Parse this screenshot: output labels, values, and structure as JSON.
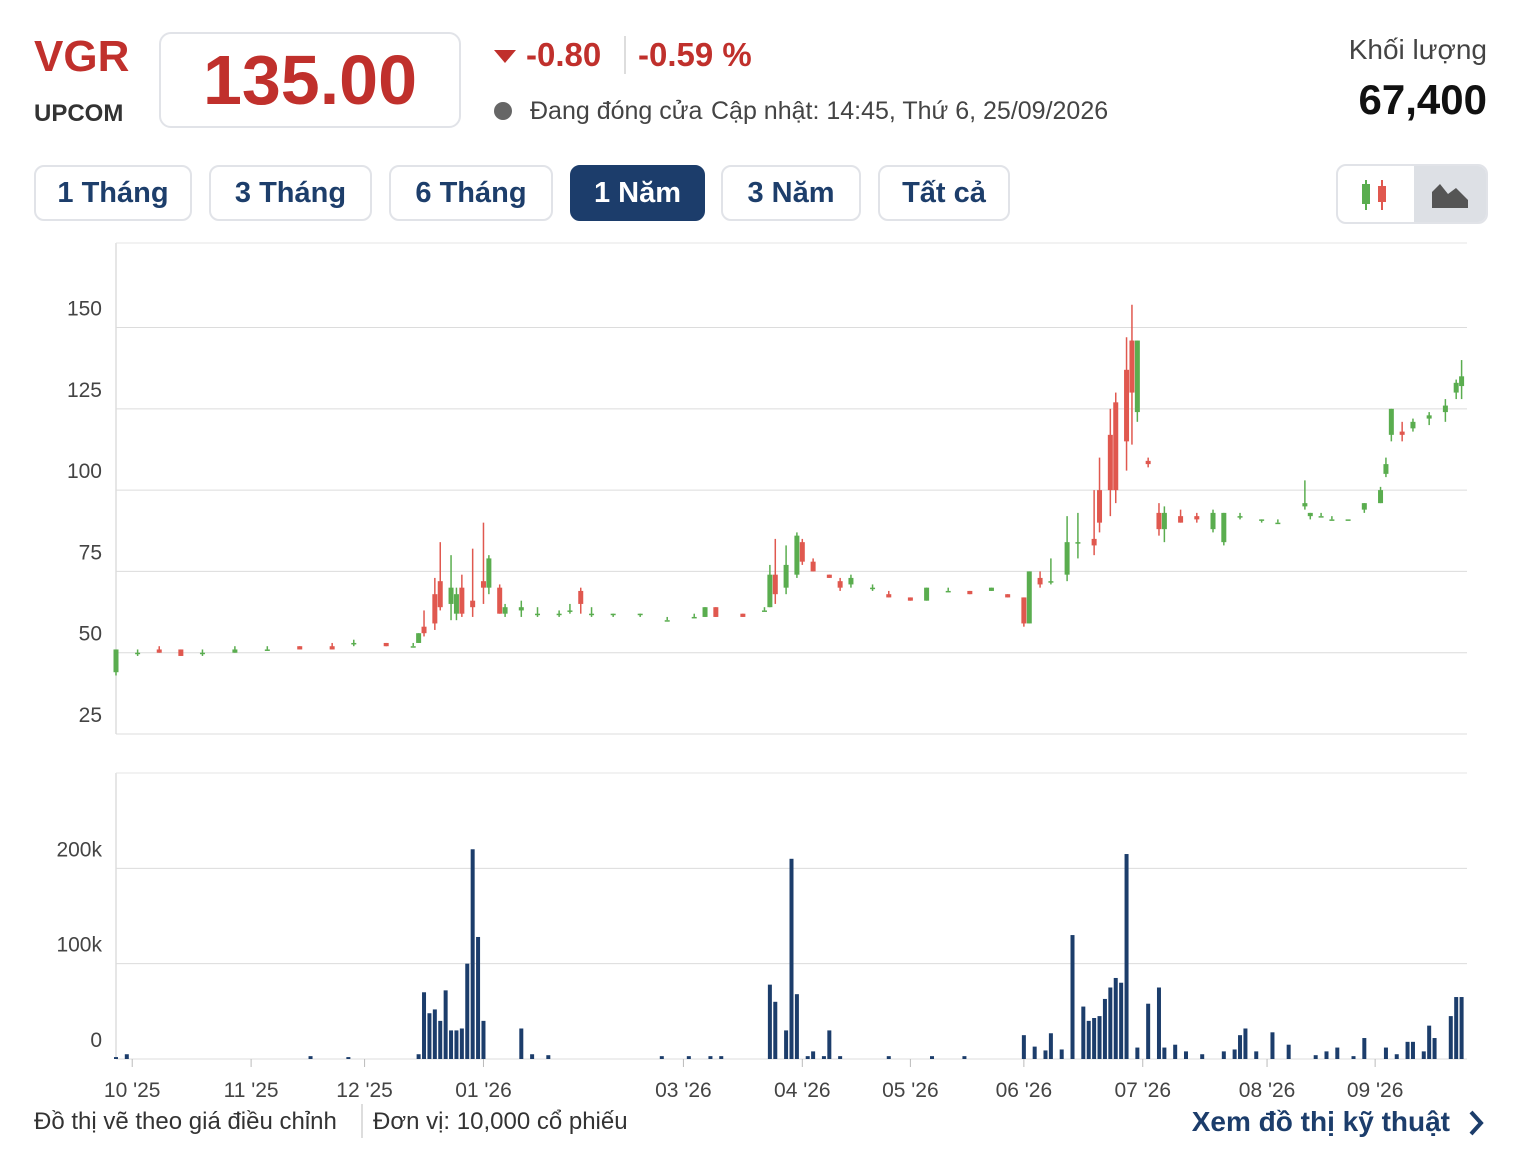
{
  "header": {
    "symbol": "VGR",
    "exchange": "UPCOM",
    "price": "135.00",
    "change": "-0.80",
    "change_percent": "-0.59 %",
    "status": "Đang đóng cửa",
    "updated": "Cập nhật: 14:45, Thứ 6, 25/09/2026",
    "volume_label": "Khối lượng",
    "volume": "67,400"
  },
  "tabs": [
    "1 Tháng",
    "3 Tháng",
    "6 Tháng",
    "1 Năm",
    "3 Năm",
    "Tất cả"
  ],
  "footer": {
    "note": "Đồ thị vẽ theo giá điều chỉnh",
    "unit": "Đơn vị: 10,000 cổ phiếu",
    "link": "Xem đồ thị kỹ thuật"
  },
  "chart_data": [
    {
      "type": "candlestick",
      "up_color": "#5aad4f",
      "down_color": "#e0584f",
      "grid": true,
      "xlim": [
        0,
        250
      ],
      "ylim": [
        25,
        176
      ],
      "yticks": [
        25,
        50,
        75,
        100,
        125,
        150
      ],
      "x": [
        0,
        4,
        8,
        12,
        16,
        22,
        28,
        34,
        40,
        44,
        50,
        55,
        56,
        57,
        59,
        60,
        62,
        63,
        64,
        66,
        68,
        69,
        71,
        72,
        75,
        78,
        82,
        84,
        86,
        88,
        92,
        97,
        102,
        107,
        109,
        111,
        116,
        120,
        121,
        122,
        124,
        126,
        127,
        129,
        132,
        134,
        136,
        140,
        143,
        147,
        150,
        154,
        158,
        162,
        165,
        168,
        169,
        171,
        173,
        176,
        178,
        181,
        182,
        184,
        185,
        187,
        188,
        189,
        191,
        193,
        194,
        197,
        200,
        203,
        205,
        208,
        212,
        215,
        220,
        221,
        223,
        225,
        228,
        231,
        234,
        235,
        236,
        238,
        240,
        243,
        246,
        248,
        249
      ],
      "open": [
        44,
        50,
        51,
        51,
        50,
        50,
        51,
        52,
        52,
        53,
        53,
        52,
        53,
        58,
        68,
        72,
        65,
        62,
        70,
        66,
        72,
        70,
        70,
        62,
        63,
        62,
        62,
        63,
        69,
        62,
        62,
        62,
        60,
        61,
        61,
        64,
        62,
        63,
        64,
        74,
        70,
        74,
        84,
        78,
        74,
        72,
        71,
        70,
        68,
        67,
        66,
        69,
        69,
        69,
        68,
        67,
        59,
        73,
        72,
        74,
        84,
        85,
        100,
        117,
        127,
        137,
        146,
        124,
        109,
        93,
        88,
        92,
        92,
        88,
        84,
        92,
        91,
        90,
        95,
        92,
        92,
        91,
        91,
        94,
        96,
        105,
        117,
        118,
        119,
        122,
        124,
        130,
        132
      ],
      "high": [
        51,
        51,
        52,
        51,
        51,
        52,
        52,
        52,
        53,
        54,
        53,
        53,
        56,
        63,
        73,
        84,
        80,
        70,
        74,
        82,
        90,
        80,
        71,
        65,
        66,
        64,
        63,
        65,
        70,
        64,
        62,
        62,
        61,
        62,
        64,
        64,
        62,
        64,
        77,
        85,
        83,
        87,
        85,
        79,
        74,
        73,
        74,
        71,
        69,
        67,
        70,
        70,
        69,
        70,
        68,
        67,
        75,
        75,
        79,
        92,
        93,
        100,
        110,
        125,
        130,
        147,
        157,
        146,
        110,
        96,
        95,
        94,
        93,
        94,
        93,
        93,
        91,
        91,
        103,
        93,
        93,
        92,
        91,
        96,
        101,
        110,
        125,
        121,
        122,
        124,
        128,
        134,
        140
      ],
      "low": [
        43,
        49,
        50,
        49,
        49,
        50,
        51,
        51,
        51,
        52,
        52,
        52,
        53,
        55,
        57,
        63,
        60,
        60,
        61,
        61,
        65,
        68,
        62,
        61,
        61,
        61,
        61,
        62,
        62,
        61,
        61,
        61,
        60,
        61,
        61,
        61,
        61,
        63,
        64,
        65,
        68,
        73,
        77,
        75,
        73,
        69,
        70,
        69,
        67,
        66,
        66,
        69,
        68,
        69,
        67,
        58,
        59,
        70,
        71,
        72,
        79,
        80,
        87,
        92,
        96,
        106,
        114,
        121,
        107,
        86,
        84,
        90,
        90,
        87,
        83,
        91,
        90,
        90,
        94,
        91,
        92,
        91,
        91,
        93,
        96,
        104,
        115,
        115,
        118,
        120,
        121,
        128,
        128
      ],
      "close": [
        51,
        50,
        50,
        49,
        50,
        51,
        51,
        51,
        51,
        53,
        52,
        52,
        56,
        56,
        59,
        64,
        70,
        68,
        62,
        64,
        70,
        79,
        62,
        64,
        64,
        62,
        62,
        63,
        65,
        62,
        62,
        62,
        60,
        61,
        64,
        61,
        61,
        63,
        74,
        68,
        77,
        86,
        78,
        75,
        73,
        70,
        73,
        70,
        67,
        66,
        70,
        69,
        68,
        70,
        67,
        59,
        75,
        71,
        72,
        84,
        84,
        83,
        90,
        100,
        100,
        115,
        130,
        146,
        108,
        88,
        93,
        90,
        91,
        93,
        93,
        92,
        91,
        90,
        96,
        93,
        92,
        91,
        91,
        96,
        100,
        108,
        125,
        117,
        121,
        123,
        126,
        133,
        135
      ]
    },
    {
      "type": "bar",
      "color": "#1c3d6b",
      "grid": true,
      "xlim": [
        0,
        250
      ],
      "ylim": [
        0,
        300000
      ],
      "yticks": [
        {
          "value": 0,
          "label": "0"
        },
        {
          "value": 100000,
          "label": "100k"
        },
        {
          "value": 200000,
          "label": "200k"
        }
      ],
      "xticks": [
        {
          "value": 3,
          "label": "10 '25"
        },
        {
          "value": 25,
          "label": "11 '25"
        },
        {
          "value": 46,
          "label": "12 '25"
        },
        {
          "value": 68,
          "label": "01 '26"
        },
        {
          "value": 105,
          "label": "03 '26"
        },
        {
          "value": 127,
          "label": "04 '26"
        },
        {
          "value": 147,
          "label": "05 '26"
        },
        {
          "value": 168,
          "label": "06 '26"
        },
        {
          "value": 190,
          "label": "07 '26"
        },
        {
          "value": 213,
          "label": "08 '26"
        },
        {
          "value": 233,
          "label": "09 '26"
        }
      ],
      "x": [
        0,
        2,
        36,
        43,
        56,
        57,
        58,
        59,
        60,
        61,
        62,
        63,
        64,
        65,
        66,
        67,
        68,
        75,
        77,
        80,
        101,
        106,
        110,
        112,
        121,
        122,
        124,
        125,
        126,
        128,
        129,
        131,
        132,
        134,
        143,
        151,
        157,
        168,
        170,
        172,
        173,
        175,
        177,
        179,
        180,
        181,
        182,
        183,
        184,
        185,
        186,
        187,
        189,
        191,
        193,
        194,
        196,
        198,
        201,
        205,
        207,
        208,
        209,
        211,
        214,
        217,
        222,
        224,
        226,
        229,
        231,
        235,
        237,
        239,
        240,
        242,
        243,
        244,
        247,
        248,
        249
      ],
      "values": [
        2000,
        5000,
        3000,
        2000,
        5000,
        70000,
        48000,
        52000,
        40000,
        72000,
        30000,
        30000,
        32000,
        100000,
        220000,
        128000,
        40000,
        32000,
        5000,
        4000,
        3000,
        3000,
        3000,
        3000,
        78000,
        60000,
        30000,
        210000,
        68000,
        3000,
        8000,
        3000,
        30000,
        3000,
        3000,
        3000,
        3000,
        25000,
        13000,
        9000,
        27000,
        10000,
        130000,
        55000,
        40000,
        43000,
        45000,
        63000,
        75000,
        85000,
        80000,
        215000,
        12000,
        58000,
        75000,
        12000,
        15000,
        8000,
        5000,
        8000,
        10000,
        25000,
        32000,
        8000,
        28000,
        15000,
        4000,
        8000,
        12000,
        3000,
        22000,
        12000,
        5000,
        18000,
        18000,
        8000,
        35000,
        22000,
        45000,
        65000,
        65000
      ]
    }
  ]
}
